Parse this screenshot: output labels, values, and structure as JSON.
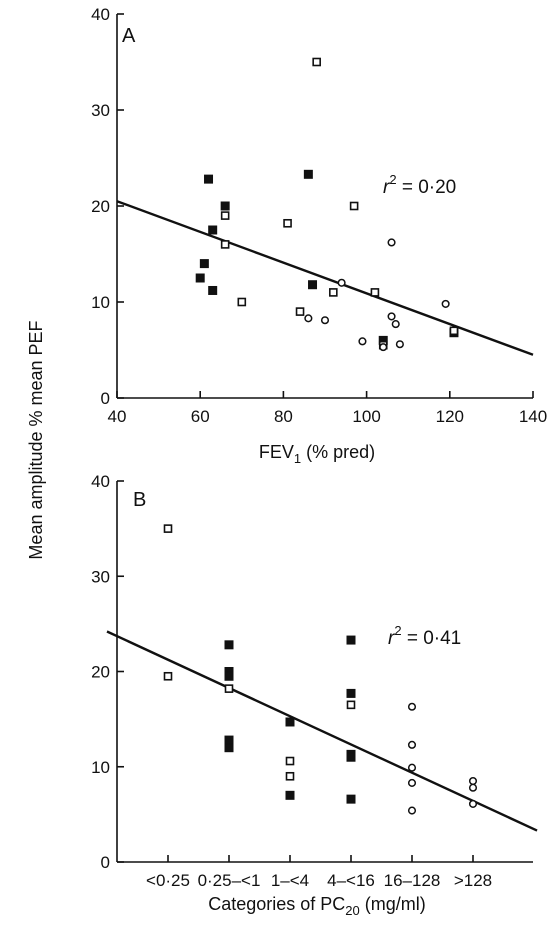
{
  "shared_ylabel": "Mean amplitude % mean PEF",
  "chart_data": [
    {
      "type": "scatter",
      "panel": "A",
      "xlabel": "FEV₁ (% pred)",
      "xlabel_main": "FEV",
      "xlabel_sub": "1",
      "xlabel_rest": " (% pred)",
      "xlim": [
        40,
        140
      ],
      "ylim": [
        0,
        40
      ],
      "xticks": [
        40,
        60,
        80,
        100,
        120,
        140
      ],
      "yticks": [
        0,
        10,
        20,
        30,
        40
      ],
      "annotation": {
        "r": "r",
        "sup": "2",
        "text": " = 0·20"
      },
      "regression": {
        "x": [
          40,
          140
        ],
        "y": [
          20.5,
          4.5
        ]
      },
      "series": [
        {
          "marker": "filled-square",
          "points": [
            [
              60,
              12.5
            ],
            [
              61,
              14
            ],
            [
              62,
              22.8
            ],
            [
              63,
              17.5
            ],
            [
              63,
              11.2
            ],
            [
              66,
              20
            ],
            [
              86,
              23.3
            ],
            [
              87,
              11.8
            ],
            [
              104,
              6
            ],
            [
              121,
              6.8
            ]
          ]
        },
        {
          "marker": "open-square",
          "points": [
            [
              66,
              19
            ],
            [
              66,
              16
            ],
            [
              70,
              10
            ],
            [
              81,
              18.2
            ],
            [
              84,
              9
            ],
            [
              88,
              35
            ],
            [
              92,
              11
            ],
            [
              97,
              20
            ],
            [
              102,
              11
            ],
            [
              104,
              5.5
            ],
            [
              121,
              7
            ]
          ]
        },
        {
          "marker": "open-circle",
          "points": [
            [
              86,
              8.3
            ],
            [
              90,
              8.1
            ],
            [
              94,
              12
            ],
            [
              99,
              5.9
            ],
            [
              104,
              5.3
            ],
            [
              106,
              16.2
            ],
            [
              106,
              8.5
            ],
            [
              107,
              7.7
            ],
            [
              108,
              5.6
            ],
            [
              119,
              9.8
            ]
          ]
        }
      ]
    },
    {
      "type": "scatter",
      "panel": "B",
      "xlabel": "Categories of PC₂₀ (mg/ml)",
      "xlabel_main": "Categories of PC",
      "xlabel_sub": "20",
      "xlabel_rest": " (mg/ml)",
      "categories": [
        "<0·25",
        "0·25–<1",
        "1–<4",
        "4–<16",
        "16–128",
        ">128"
      ],
      "ylim": [
        0,
        40
      ],
      "yticks": [
        0,
        10,
        20,
        30,
        40
      ],
      "annotation": {
        "r": "r",
        "sup": "2",
        "text": " = 0·41"
      },
      "regression": {
        "x": [
          0,
          7.05
        ],
        "y": [
          24.2,
          3.3
        ]
      },
      "series": [
        {
          "marker": "filled-square",
          "points": [
            [
              2,
              22.8
            ],
            [
              2,
              20
            ],
            [
              2,
              19.5
            ],
            [
              2,
              12.8
            ],
            [
              2,
              12
            ],
            [
              3,
              14.7
            ],
            [
              3,
              7
            ],
            [
              4,
              23.3
            ],
            [
              4,
              17.7
            ],
            [
              4,
              11.3
            ],
            [
              4,
              11
            ],
            [
              4,
              6.6
            ]
          ]
        },
        {
          "marker": "open-square",
          "points": [
            [
              1,
              35
            ],
            [
              1,
              19.5
            ],
            [
              2,
              18.2
            ],
            [
              3,
              10.6
            ],
            [
              3,
              9
            ],
            [
              4,
              16.5
            ]
          ]
        },
        {
          "marker": "open-circle",
          "points": [
            [
              5,
              16.3
            ],
            [
              5,
              12.3
            ],
            [
              5,
              9.9
            ],
            [
              5,
              8.3
            ],
            [
              5,
              5.4
            ],
            [
              6,
              8.5
            ],
            [
              6,
              7.8
            ],
            [
              6,
              6.1
            ]
          ]
        }
      ]
    }
  ]
}
